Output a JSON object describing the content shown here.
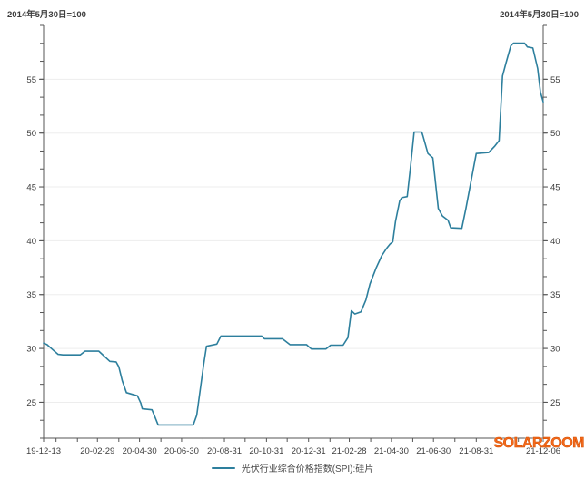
{
  "header": {
    "left_note": "2014年5月30日=100",
    "right_note": "2014年5月30日=100"
  },
  "watermark": {
    "text": "SOLARZOOM",
    "color": "#f4691c"
  },
  "legend": {
    "label": "光伏行业综合价格指数(SPI):硅片"
  },
  "colors": {
    "line": "#2d7f9d",
    "axis": "#555555",
    "grid": "#ededed",
    "tick_label": "#3d3d3d"
  },
  "chart_data": {
    "type": "line",
    "title": "",
    "xlabel": "",
    "ylabel": "",
    "legend_position": "bottom-center",
    "grid": "horizontal-major",
    "y_axis": {
      "min": 21.667,
      "max": 60,
      "major_ticks": [
        25,
        30,
        35,
        40,
        45,
        50,
        55
      ],
      "minor_step": 1.6667,
      "mirrored_right": true,
      "note": "2014年5月30日=100"
    },
    "x_axis": {
      "start": "2019-12-13",
      "end": "2021-12-06",
      "minor_ticks": "monthly",
      "tick_labels": [
        {
          "date": "2019-12-13",
          "label": "19-12-13"
        },
        {
          "date": "2020-02-29",
          "label": "20-02-29"
        },
        {
          "date": "2020-04-30",
          "label": "20-04-30"
        },
        {
          "date": "2020-06-30",
          "label": "20-06-30"
        },
        {
          "date": "2020-08-31",
          "label": "20-08-31"
        },
        {
          "date": "2020-10-31",
          "label": "20-10-31"
        },
        {
          "date": "2020-12-31",
          "label": "20-12-31"
        },
        {
          "date": "2021-02-28",
          "label": "21-02-28"
        },
        {
          "date": "2021-04-30",
          "label": "21-04-30"
        },
        {
          "date": "2021-06-30",
          "label": "21-06-30"
        },
        {
          "date": "2021-08-31",
          "label": "21-08-31"
        },
        {
          "date": "2021-12-06",
          "label": "21-12-06"
        }
      ]
    },
    "series": [
      {
        "name": "光伏行业综合价格指数(SPI):硅片",
        "color": "#2d7f9d",
        "points": [
          [
            "2019-12-13",
            30.5
          ],
          [
            "2019-12-18",
            30.35
          ],
          [
            "2019-12-26",
            29.9
          ],
          [
            "2020-01-03",
            29.45
          ],
          [
            "2020-01-10",
            29.4
          ],
          [
            "2020-02-04",
            29.4
          ],
          [
            "2020-02-11",
            29.75
          ],
          [
            "2020-03-02",
            29.75
          ],
          [
            "2020-03-07",
            29.45
          ],
          [
            "2020-03-13",
            29.1
          ],
          [
            "2020-03-18",
            28.8
          ],
          [
            "2020-03-27",
            28.75
          ],
          [
            "2020-03-31",
            28.3
          ],
          [
            "2020-04-05",
            27.0
          ],
          [
            "2020-04-11",
            25.9
          ],
          [
            "2020-04-27",
            25.6
          ],
          [
            "2020-05-02",
            24.9
          ],
          [
            "2020-05-04",
            24.4
          ],
          [
            "2020-05-18",
            24.3
          ],
          [
            "2020-05-22",
            23.7
          ],
          [
            "2020-05-27",
            22.9
          ],
          [
            "2020-07-17",
            22.9
          ],
          [
            "2020-07-22",
            23.8
          ],
          [
            "2020-08-01",
            28.5
          ],
          [
            "2020-08-05",
            30.2
          ],
          [
            "2020-08-20",
            30.4
          ],
          [
            "2020-08-26",
            31.15
          ],
          [
            "2020-10-24",
            31.15
          ],
          [
            "2020-10-28",
            30.9
          ],
          [
            "2020-11-23",
            30.9
          ],
          [
            "2020-11-27",
            30.7
          ],
          [
            "2020-12-04",
            30.35
          ],
          [
            "2020-12-28",
            30.35
          ],
          [
            "2021-01-04",
            29.95
          ],
          [
            "2021-01-25",
            29.95
          ],
          [
            "2021-02-01",
            30.3
          ],
          [
            "2021-02-19",
            30.3
          ],
          [
            "2021-02-26",
            31.0
          ],
          [
            "2021-03-03",
            33.5
          ],
          [
            "2021-03-08",
            33.2
          ],
          [
            "2021-03-17",
            33.4
          ],
          [
            "2021-03-24",
            34.5
          ],
          [
            "2021-03-30",
            36.0
          ],
          [
            "2021-04-08",
            37.5
          ],
          [
            "2021-04-16",
            38.6
          ],
          [
            "2021-04-23",
            39.3
          ],
          [
            "2021-04-28",
            39.7
          ],
          [
            "2021-05-02",
            39.9
          ],
          [
            "2021-05-06",
            41.8
          ],
          [
            "2021-05-12",
            43.7
          ],
          [
            "2021-05-15",
            44.0
          ],
          [
            "2021-05-23",
            44.1
          ],
          [
            "2021-05-28",
            47.0
          ],
          [
            "2021-06-02",
            50.1
          ],
          [
            "2021-06-13",
            50.1
          ],
          [
            "2021-06-15",
            49.7
          ],
          [
            "2021-06-22",
            48.1
          ],
          [
            "2021-06-29",
            47.7
          ],
          [
            "2021-07-07",
            43.0
          ],
          [
            "2021-07-13",
            42.3
          ],
          [
            "2021-07-21",
            41.9
          ],
          [
            "2021-07-25",
            41.2
          ],
          [
            "2021-08-10",
            41.15
          ],
          [
            "2021-08-16",
            43.0
          ],
          [
            "2021-08-26",
            46.4
          ],
          [
            "2021-08-31",
            48.1
          ],
          [
            "2021-09-18",
            48.2
          ],
          [
            "2021-09-27",
            48.8
          ],
          [
            "2021-10-03",
            49.3
          ],
          [
            "2021-10-08",
            55.3
          ],
          [
            "2021-10-13",
            56.5
          ],
          [
            "2021-10-20",
            58.1
          ],
          [
            "2021-10-24",
            58.35
          ],
          [
            "2021-11-09",
            58.35
          ],
          [
            "2021-11-13",
            58.0
          ],
          [
            "2021-11-21",
            57.9
          ],
          [
            "2021-11-28",
            56.0
          ],
          [
            "2021-12-02",
            53.8
          ],
          [
            "2021-12-06",
            52.9
          ]
        ]
      }
    ]
  }
}
